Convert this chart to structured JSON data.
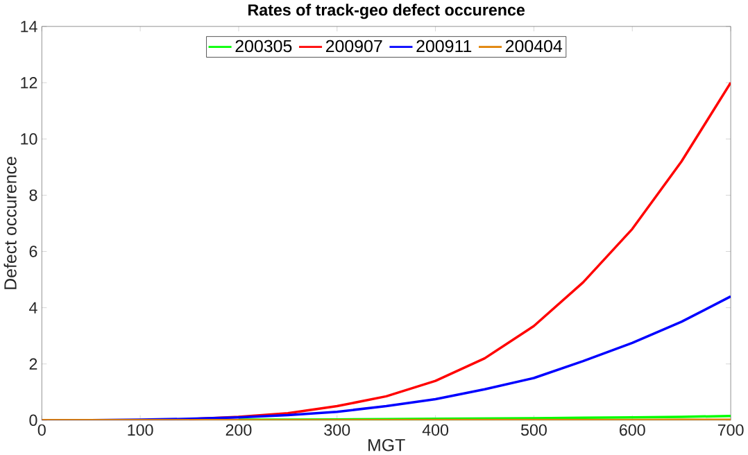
{
  "chart_data": {
    "type": "line",
    "title": "Rates of track-geo defect occurence",
    "xlabel": "MGT",
    "ylabel": "Defect occurence",
    "x": [
      0,
      50,
      100,
      150,
      200,
      250,
      300,
      350,
      400,
      450,
      500,
      550,
      600,
      650,
      700
    ],
    "series": [
      {
        "name": "200305",
        "color": "#00ff00",
        "values": [
          null,
          null,
          null,
          null,
          0.02,
          0.02,
          0.03,
          0.04,
          0.05,
          0.06,
          0.07,
          0.09,
          0.1,
          0.12,
          0.15
        ]
      },
      {
        "name": "200907",
        "color": "#ff0000",
        "values": [
          null,
          null,
          null,
          0.04,
          0.12,
          0.25,
          0.5,
          0.85,
          1.4,
          2.2,
          3.35,
          4.9,
          6.8,
          9.2,
          12
        ]
      },
      {
        "name": "200911",
        "color": "#0000ff",
        "values": [
          0,
          0,
          0.02,
          0.05,
          0.1,
          0.18,
          0.3,
          0.5,
          0.75,
          1.1,
          1.5,
          2.1,
          2.75,
          3.5,
          4.4
        ]
      },
      {
        "name": "200404",
        "color": "#e08000",
        "values": [
          0,
          0,
          0,
          0,
          0,
          0,
          0,
          0,
          0.01,
          0.01,
          0.01,
          0.01,
          0.01,
          0.02,
          0.02
        ]
      }
    ],
    "xlim": [
      0,
      700
    ],
    "ylim": [
      0,
      14
    ],
    "xticks": [
      0,
      100,
      200,
      300,
      400,
      500,
      600,
      700
    ],
    "yticks": [
      0,
      2,
      4,
      6,
      8,
      10,
      12,
      14
    ],
    "grid": false,
    "legend": "top",
    "marker": "none",
    "line_style": "solid"
  }
}
